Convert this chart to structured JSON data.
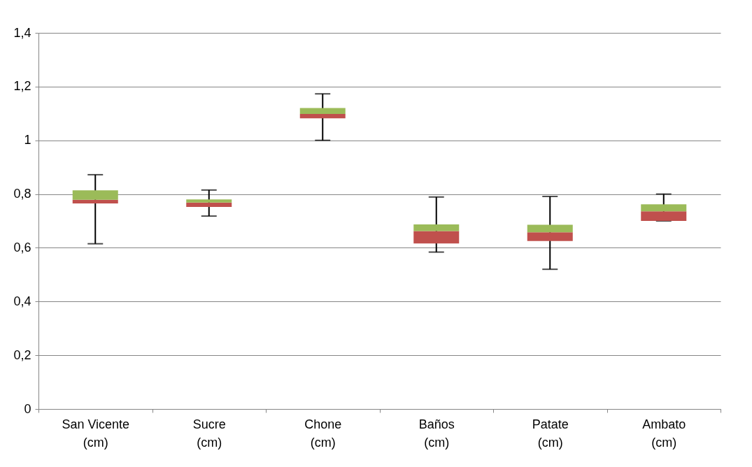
{
  "chart_data": {
    "type": "box",
    "categories": [
      "San Vicente\n(cm)",
      "Sucre\n(cm)",
      "Chone\n(cm)",
      "Baños\n(cm)",
      "Patate\n(cm)",
      "Ambato\n(cm)"
    ],
    "series": [
      {
        "color": "#c0504d",
        "boxes": [
          {
            "low": 0.615,
            "q1": 0.765,
            "median": 0.779,
            "q3": 0.814,
            "high": 0.872
          },
          {
            "low": 0.718,
            "q1": 0.752,
            "median": 0.768,
            "q3": 0.78,
            "high": 0.815
          },
          {
            "low": 1.0,
            "q1": 1.082,
            "median": 1.098,
            "q3": 1.12,
            "high": 1.173
          },
          {
            "low": 0.584,
            "q1": 0.616,
            "median": 0.662,
            "q3": 0.687,
            "high": 0.789
          },
          {
            "low": 0.52,
            "q1": 0.625,
            "median": 0.658,
            "q3": 0.686,
            "high": 0.791
          },
          {
            "low": 0.7,
            "q1": 0.7,
            "median": 0.736,
            "q3": 0.762,
            "high": 0.8
          }
        ]
      }
    ],
    "colors": [
      "#9bbb59",
      "#9bbb59",
      "#9bbb59",
      "#9bbb59",
      "#9bbb59",
      "#9bbb59"
    ],
    "ylim": [
      0,
      1.4
    ],
    "yticks": [
      0,
      {
        "value": 0.2,
        "label": "0,2"
      },
      {
        "value": 0.4,
        "label": "0,4"
      },
      {
        "value": 0.6,
        "label": "0,6"
      },
      {
        "value": 0.8,
        "label": "0,8"
      },
      1,
      {
        "value": 1.2,
        "label": "1,2"
      },
      {
        "value": 1.4,
        "label": "1,4"
      }
    ],
    "grid": "y"
  }
}
